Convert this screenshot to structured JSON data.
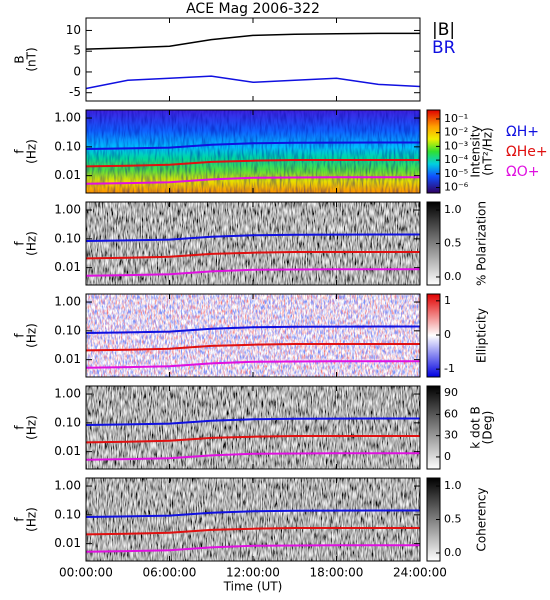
{
  "chart_data": [
    {
      "type": "line",
      "title": "ACE Mag 2006-322",
      "ylabel": [
        "B",
        "(nT)"
      ],
      "x": [
        0,
        3,
        6,
        9,
        12,
        15,
        18,
        21,
        24
      ],
      "xlim": [
        0,
        24
      ],
      "ylim": [
        -7,
        13
      ],
      "yticks": [
        -5,
        0,
        5,
        10
      ],
      "legend": "right",
      "series": [
        {
          "name": "|B|",
          "color": "#000000",
          "values": [
            5.5,
            5.8,
            6.2,
            7.8,
            8.8,
            9.1,
            9.2,
            9.3,
            9.3
          ]
        },
        {
          "name": "BR",
          "color": "#1010e0",
          "values": [
            -4,
            -2,
            -1.5,
            -1,
            -2.5,
            -2,
            -1.5,
            -3,
            -3.5
          ]
        }
      ]
    },
    {
      "type": "heatmap",
      "ylabel": [
        "f",
        "(Hz)"
      ],
      "log": true,
      "colormap": "rainbow",
      "x": [
        0,
        3,
        6,
        9,
        12,
        15,
        18,
        21,
        24
      ],
      "xlim": [
        0,
        24
      ],
      "ylim": [
        0.0025,
        1.9
      ],
      "yticks": [
        {
          "value": 0.01,
          "label": "0.01"
        },
        {
          "value": 0.1,
          "label": "0.10"
        },
        {
          "value": 1,
          "label": "1.00"
        }
      ],
      "colorbar": {
        "label": [
          "Intensity",
          "(nT²/Hz)"
        ],
        "log": true,
        "lim": [
          4e-07,
          0.45
        ],
        "ticks": [
          {
            "value": 1e-06,
            "label": "10⁻⁶"
          },
          {
            "value": 1e-05,
            "label": "10⁻⁵"
          },
          {
            "value": 0.0001,
            "label": "10⁻⁴"
          },
          {
            "value": 0.001,
            "label": "10⁻³"
          },
          {
            "value": 0.01,
            "label": "10⁻²"
          },
          {
            "value": 0.1,
            "label": "10⁻¹"
          }
        ]
      },
      "legend": "right",
      "series": [
        {
          "name": "ΩH+",
          "color": "#1010e0",
          "values": [
            0.084,
            0.088,
            0.094,
            0.118,
            0.134,
            0.138,
            0.14,
            0.141,
            0.141
          ]
        },
        {
          "name": "ΩHe+",
          "color": "#e01010",
          "values": [
            0.021,
            0.022,
            0.024,
            0.03,
            0.033,
            0.035,
            0.035,
            0.035,
            0.035
          ]
        },
        {
          "name": "ΩO+",
          "color": "#e010e0",
          "values": [
            0.0052,
            0.0055,
            0.0059,
            0.0074,
            0.0084,
            0.0086,
            0.0088,
            0.0088,
            0.0088
          ]
        }
      ]
    },
    {
      "type": "heatmap",
      "ylabel": [
        "f",
        "(Hz)"
      ],
      "log": true,
      "colormap": "gray",
      "x": [
        0,
        3,
        6,
        9,
        12,
        15,
        18,
        21,
        24
      ],
      "xlim": [
        0,
        24
      ],
      "ylim": [
        0.0025,
        1.9
      ],
      "yticks": [
        {
          "value": 0.01,
          "label": "0.01"
        },
        {
          "value": 0.1,
          "label": "0.10"
        },
        {
          "value": 1,
          "label": "1.00"
        }
      ],
      "colorbar": {
        "label": [
          "% Polarization"
        ],
        "log": false,
        "lim": [
          -0.12,
          1.12
        ],
        "ticks": [
          {
            "value": 0,
            "label": "0.0"
          },
          {
            "value": 0.5,
            "label": "0.5"
          },
          {
            "value": 1,
            "label": "1.0"
          }
        ]
      },
      "series": [
        {
          "color": "#1010e0",
          "values": [
            0.084,
            0.088,
            0.094,
            0.118,
            0.134,
            0.138,
            0.14,
            0.141,
            0.141
          ]
        },
        {
          "color": "#e01010",
          "values": [
            0.021,
            0.022,
            0.024,
            0.03,
            0.033,
            0.035,
            0.035,
            0.035,
            0.035
          ]
        },
        {
          "color": "#e010e0",
          "values": [
            0.0052,
            0.0055,
            0.0059,
            0.0074,
            0.0084,
            0.0086,
            0.0088,
            0.0088,
            0.0088
          ]
        }
      ]
    },
    {
      "type": "heatmap",
      "ylabel": [
        "f",
        "(Hz)"
      ],
      "log": true,
      "colormap": "bwr",
      "x": [
        0,
        3,
        6,
        9,
        12,
        15,
        18,
        21,
        24
      ],
      "xlim": [
        0,
        24
      ],
      "ylim": [
        0.0025,
        1.9
      ],
      "yticks": [
        {
          "value": 0.01,
          "label": "0.01"
        },
        {
          "value": 0.1,
          "label": "0.10"
        },
        {
          "value": 1,
          "label": "1.00"
        }
      ],
      "colorbar": {
        "label": [
          "Ellipticity"
        ],
        "log": false,
        "lim": [
          -1.23,
          1.2
        ],
        "ticks": [
          -1,
          0,
          1
        ]
      },
      "series": [
        {
          "color": "#1010e0",
          "values": [
            0.084,
            0.088,
            0.094,
            0.118,
            0.134,
            0.138,
            0.14,
            0.141,
            0.141
          ]
        },
        {
          "color": "#e01010",
          "values": [
            0.021,
            0.022,
            0.024,
            0.03,
            0.033,
            0.035,
            0.035,
            0.035,
            0.035
          ]
        },
        {
          "color": "#e010e0",
          "values": [
            0.0052,
            0.0055,
            0.0059,
            0.0074,
            0.0084,
            0.0086,
            0.0088,
            0.0088,
            0.0088
          ]
        }
      ]
    },
    {
      "type": "heatmap",
      "ylabel": [
        "f",
        "(Hz)"
      ],
      "log": true,
      "colormap": "gray",
      "x": [
        0,
        3,
        6,
        9,
        12,
        15,
        18,
        21,
        24
      ],
      "xlim": [
        0,
        24
      ],
      "ylim": [
        0.0025,
        1.9
      ],
      "yticks": [
        {
          "value": 0.01,
          "label": "0.01"
        },
        {
          "value": 0.1,
          "label": "0.10"
        },
        {
          "value": 1,
          "label": "1.00"
        }
      ],
      "colorbar": {
        "label": [
          "k dot B",
          "(Deg)"
        ],
        "log": false,
        "lim": [
          -17,
          100
        ],
        "ticks": [
          0,
          30,
          60,
          90
        ]
      },
      "series": [
        {
          "color": "#1010e0",
          "values": [
            0.084,
            0.088,
            0.094,
            0.118,
            0.134,
            0.138,
            0.14,
            0.141,
            0.141
          ]
        },
        {
          "color": "#e01010",
          "values": [
            0.021,
            0.022,
            0.024,
            0.03,
            0.033,
            0.035,
            0.035,
            0.035,
            0.035
          ]
        },
        {
          "color": "#e010e0",
          "values": [
            0.0052,
            0.0055,
            0.0059,
            0.0074,
            0.0084,
            0.0086,
            0.0088,
            0.0088,
            0.0088
          ]
        }
      ]
    },
    {
      "type": "heatmap",
      "ylabel": [
        "f",
        "(Hz)"
      ],
      "log": true,
      "colormap": "gray",
      "x": [
        0,
        3,
        6,
        9,
        12,
        15,
        18,
        21,
        24
      ],
      "xlim": [
        0,
        24
      ],
      "ylim": [
        0.0025,
        1.9
      ],
      "yticks": [
        {
          "value": 0.01,
          "label": "0.01"
        },
        {
          "value": 0.1,
          "label": "0.10"
        },
        {
          "value": 1,
          "label": "1.00"
        }
      ],
      "colorbar": {
        "label": [
          "Coherency"
        ],
        "log": false,
        "lim": [
          -0.12,
          1.12
        ],
        "ticks": [
          {
            "value": 0,
            "label": "0.0"
          },
          {
            "value": 0.5,
            "label": "0.5"
          },
          {
            "value": 1,
            "label": "1.0"
          }
        ]
      },
      "xlabel": "Time (UT)",
      "xticks": [
        {
          "value": 0,
          "label": "00:00:00"
        },
        {
          "value": 6,
          "label": "06:00:00"
        },
        {
          "value": 12,
          "label": "12:00:00"
        },
        {
          "value": 18,
          "label": "18:00:00"
        },
        {
          "value": 24,
          "label": "24:00:00"
        }
      ],
      "series": [
        {
          "color": "#1010e0",
          "values": [
            0.084,
            0.088,
            0.094,
            0.118,
            0.134,
            0.138,
            0.14,
            0.141,
            0.141
          ]
        },
        {
          "color": "#e01010",
          "values": [
            0.021,
            0.022,
            0.024,
            0.03,
            0.033,
            0.035,
            0.035,
            0.035,
            0.035
          ]
        },
        {
          "color": "#e010e0",
          "values": [
            0.0052,
            0.0055,
            0.0059,
            0.0074,
            0.0084,
            0.0086,
            0.0088,
            0.0088,
            0.0088
          ]
        }
      ]
    }
  ]
}
